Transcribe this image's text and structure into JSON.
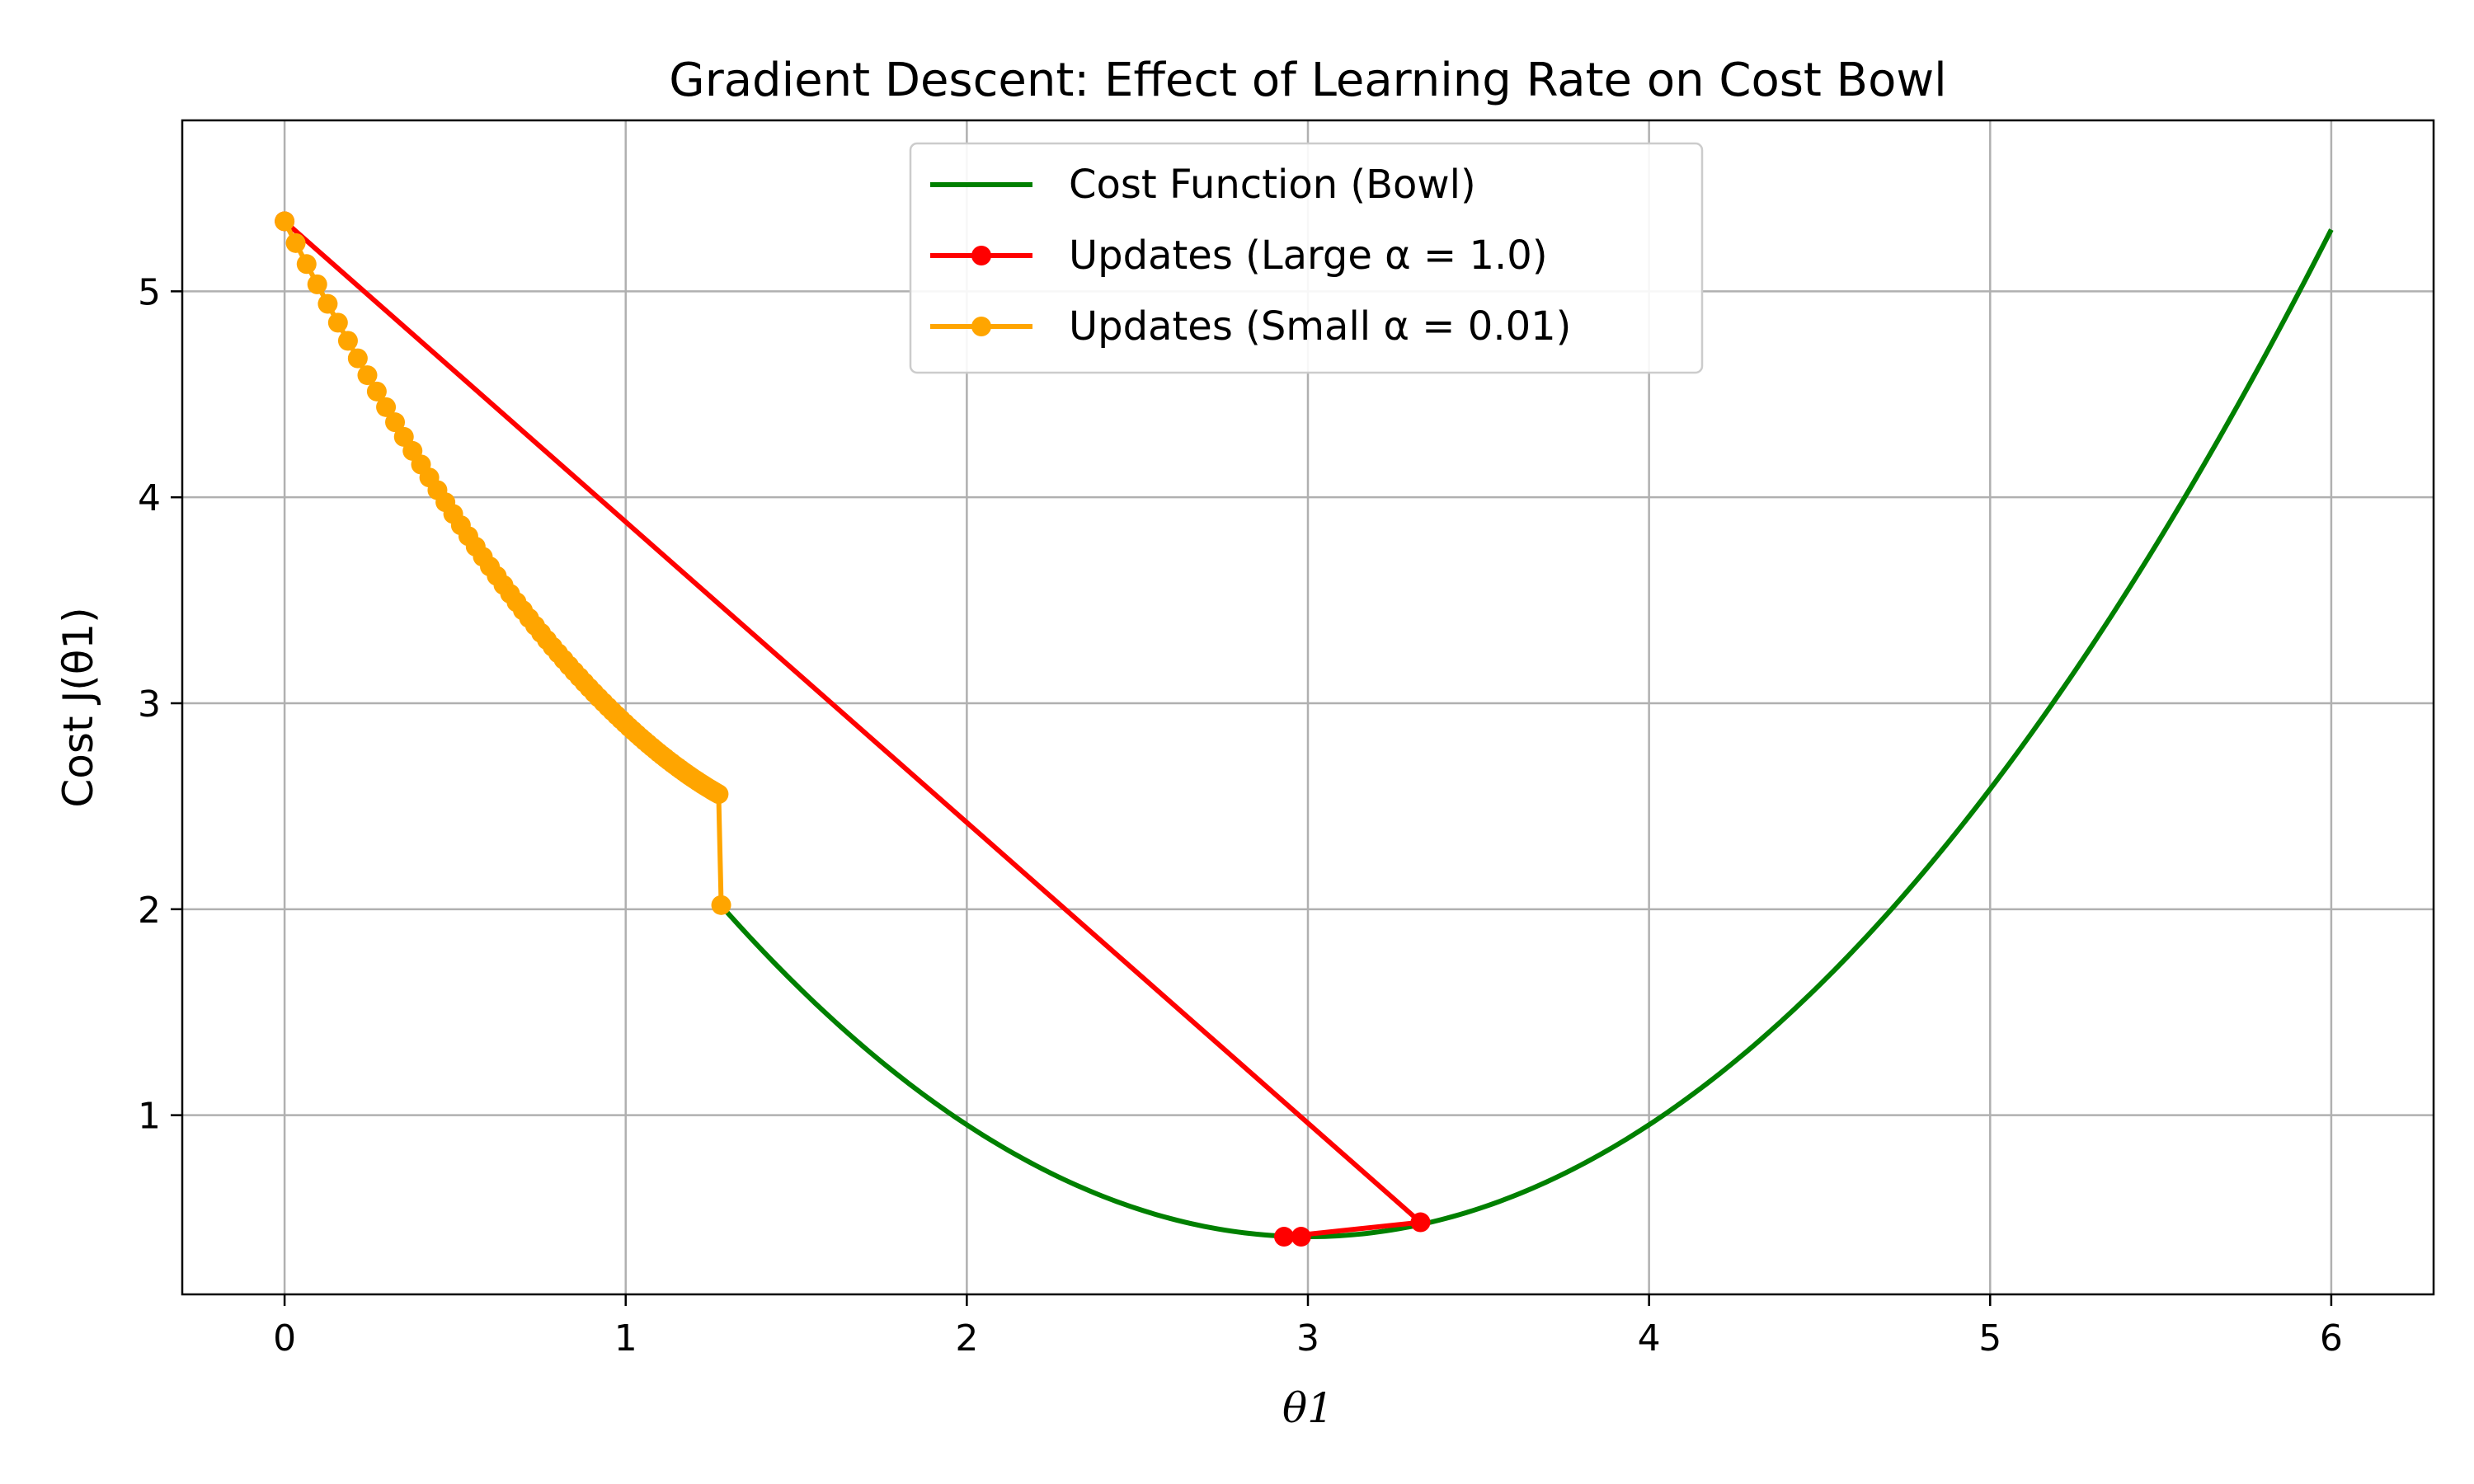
{
  "chart_data": {
    "type": "line",
    "title": "Gradient Descent: Effect of Learning Rate on Cost Bowl",
    "xlabel": "θ1",
    "ylabel": "Cost J(θ1)",
    "xlim": [
      -0.3,
      6.3
    ],
    "ylim": [
      0.13,
      5.83
    ],
    "xticks": [
      0,
      1,
      2,
      3,
      4,
      5,
      6
    ],
    "yticks": [
      1,
      2,
      3,
      4,
      5
    ],
    "grid": true,
    "legend_position": "top-center",
    "series": [
      {
        "name": "Cost Function (Bowl)",
        "color": "#008000",
        "marker": "none",
        "curve": {
          "form": "quadratic",
          "x_range": [
            1.28,
            6.0
          ],
          "vertex": [
            3.0,
            0.41
          ],
          "a": 0.5433
        }
      },
      {
        "name": "Updates (Large α = 1.0)",
        "color": "#ff0000",
        "marker": "circle",
        "points": [
          [
            0.0,
            5.34
          ],
          [
            3.33,
            0.48
          ],
          [
            2.93,
            0.41
          ],
          [
            2.98,
            0.41
          ]
        ]
      },
      {
        "name": "Updates (Small α = 0.01)",
        "color": "#ffa500",
        "marker": "circle",
        "points": [
          [
            0.0,
            5.34
          ],
          [
            0.0326,
            5.2343
          ],
          [
            0.0645,
            5.1323
          ],
          [
            0.0958,
            5.034
          ],
          [
            0.1265,
            4.9392
          ],
          [
            0.1565,
            4.8478
          ],
          [
            0.1858,
            4.7597
          ],
          [
            0.2146,
            4.6747
          ],
          [
            0.2427,
            4.5928
          ],
          [
            0.2703,
            4.5138
          ],
          [
            0.2973,
            4.4377
          ],
          [
            0.3238,
            4.3643
          ],
          [
            0.3497,
            4.2935
          ],
          [
            0.3751,
            4.2252
          ],
          [
            0.3999,
            4.1594
          ],
          [
            0.4243,
            4.096
          ],
          [
            0.4481,
            4.0348
          ],
          [
            0.4715,
            3.9759
          ],
          [
            0.4944,
            3.919
          ],
          [
            0.5168,
            3.8642
          ],
          [
            0.5387,
            3.8113
          ],
          [
            0.5602,
            3.7604
          ],
          [
            0.5812,
            3.7112
          ],
          [
            0.6018,
            3.6639
          ],
          [
            0.622,
            3.6182
          ],
          [
            0.6417,
            3.5742
          ],
          [
            0.6611,
            3.5317
          ],
          [
            0.68,
            3.4908
          ],
          [
            0.6986,
            3.4513
          ],
          [
            0.7167,
            3.4133
          ],
          [
            0.7345,
            3.3766
          ],
          [
            0.7519,
            3.3413
          ],
          [
            0.769,
            3.3072
          ],
          [
            0.7857,
            3.2743
          ],
          [
            0.8021,
            3.2427
          ],
          [
            0.8181,
            3.2121
          ],
          [
            0.8338,
            3.1827
          ],
          [
            0.8491,
            3.1543
          ],
          [
            0.8642,
            3.127
          ],
          [
            0.8789,
            3.1006
          ],
          [
            0.8933,
            3.0752
          ],
          [
            0.9074,
            3.0507
          ],
          [
            0.9212,
            3.0271
          ],
          [
            0.9348,
            3.0044
          ],
          [
            0.948,
            2.9824
          ],
          [
            0.961,
            2.9613
          ],
          [
            0.9737,
            2.9409
          ],
          [
            0.9861,
            2.9213
          ],
          [
            0.9983,
            2.9024
          ],
          [
            1.0102,
            2.8841
          ],
          [
            1.0219,
            2.8665
          ],
          [
            1.0333,
            2.8496
          ],
          [
            1.0445,
            2.8332
          ],
          [
            1.0554,
            2.8175
          ],
          [
            1.0661,
            2.8023
          ],
          [
            1.0766,
            2.7877
          ],
          [
            1.0869,
            2.7736
          ],
          [
            1.0969,
            2.76
          ],
          [
            1.1068,
            2.7469
          ],
          [
            1.1164,
            2.7343
          ],
          [
            1.1258,
            2.7221
          ],
          [
            1.1351,
            2.7104
          ],
          [
            1.1441,
            2.6991
          ],
          [
            1.153,
            2.6882
          ],
          [
            1.1617,
            2.6777
          ],
          [
            1.1702,
            2.6676
          ],
          [
            1.1785,
            2.6578
          ],
          [
            1.1866,
            2.6484
          ],
          [
            1.1946,
            2.6393
          ],
          [
            1.2024,
            2.6306
          ],
          [
            1.2101,
            2.6222
          ],
          [
            1.2176,
            2.6141
          ],
          [
            1.2249,
            2.6063
          ],
          [
            1.2321,
            2.5987
          ],
          [
            1.2392,
            2.5915
          ],
          [
            1.2461,
            2.5845
          ],
          [
            1.2528,
            2.5777
          ],
          [
            1.2595,
            2.5713
          ],
          [
            1.266,
            2.565
          ],
          [
            1.2724,
            2.559
          ],
          [
            1.28,
            2.02
          ]
        ]
      }
    ]
  }
}
